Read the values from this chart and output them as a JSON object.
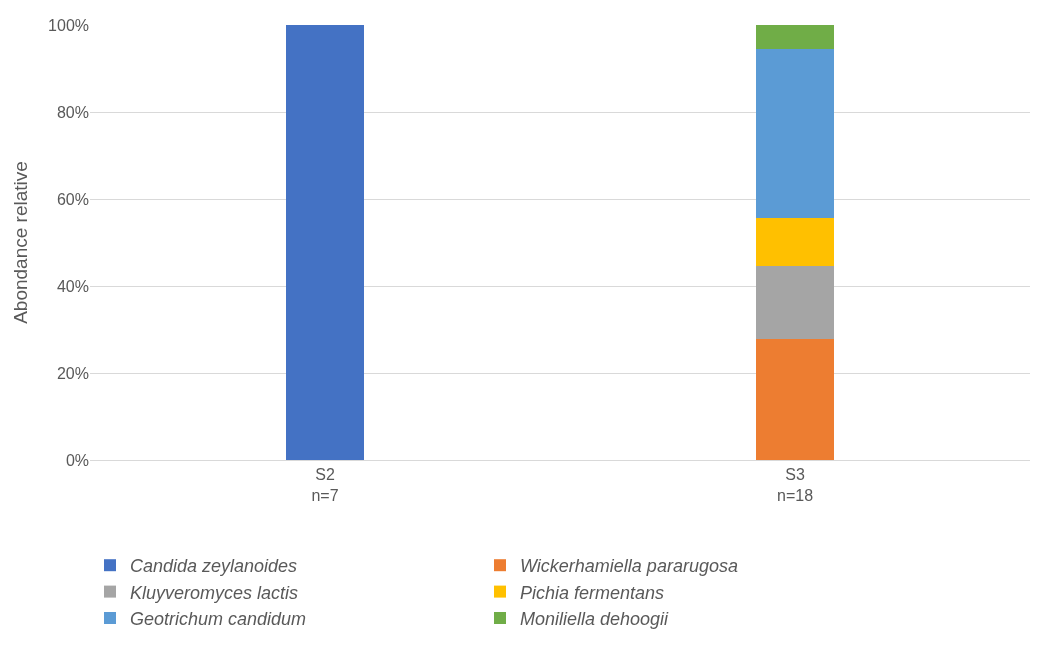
{
  "chart_data": {
    "type": "bar",
    "stacked": true,
    "ylabel": "Abondance relative",
    "categories": [
      "S2\nn=7",
      "S3\nn=18"
    ],
    "series": [
      {
        "name": "Candida zeylanoides",
        "color": "#4472c4",
        "values": [
          100,
          null
        ]
      },
      {
        "name": "Wickerhamiella pararugosa",
        "color": "#ed7d31",
        "values": [
          null,
          27.8
        ]
      },
      {
        "name": "Kluyveromyces lactis",
        "color": "#a5a5a5",
        "values": [
          null,
          16.7
        ]
      },
      {
        "name": "Pichia fermentans",
        "color": "#ffc000",
        "values": [
          null,
          11.1
        ]
      },
      {
        "name": "Geotrichum candidum",
        "color": "#5b9bd5",
        "values": [
          null,
          38.9
        ]
      },
      {
        "name": "Moniliella dehoogii",
        "color": "#70ad47",
        "values": [
          null,
          5.6
        ]
      }
    ],
    "ylim": [
      0,
      100
    ],
    "yticks": [
      {
        "value": 0,
        "label": "0%"
      },
      {
        "value": 20,
        "label": "20%"
      },
      {
        "value": 40,
        "label": "40%"
      },
      {
        "value": 60,
        "label": "60%"
      },
      {
        "value": 80,
        "label": "80%"
      },
      {
        "value": 100,
        "label": "100%"
      }
    ],
    "grid": "y",
    "legend": "bottom"
  }
}
